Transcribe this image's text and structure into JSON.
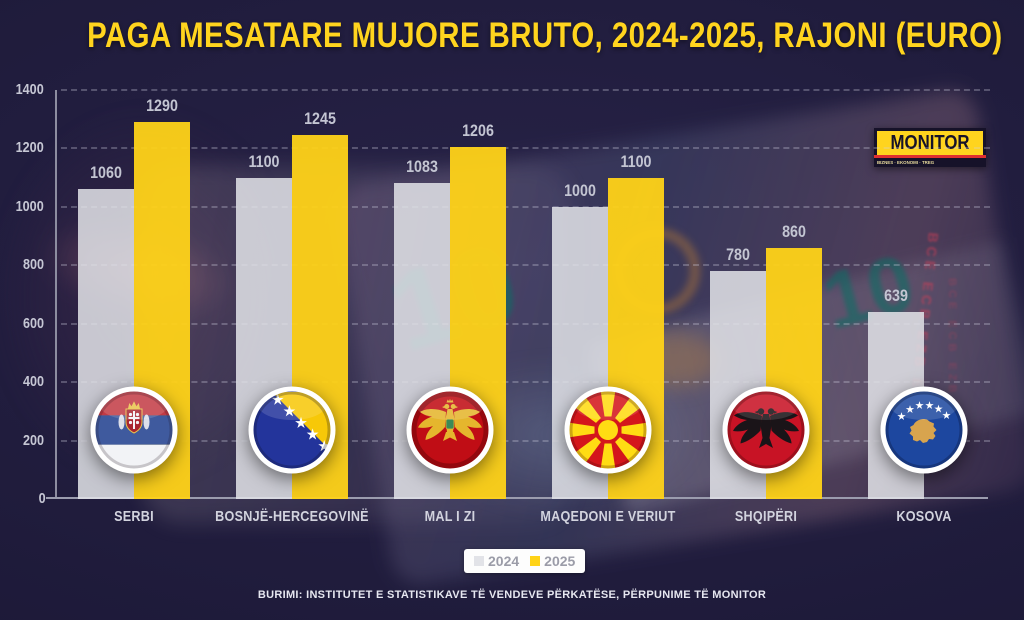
{
  "title": "PAGA MESATARE MUJORE BRUTO, 2024-2025, RAJONI (EURO)",
  "logo": {
    "name": "MONITOR",
    "tagline": "BIZNES · EKONOMI · TREG",
    "website": "www.monitor.al"
  },
  "source": "BURIMI: INSTITUTET E STATISTIKAVE TË VENDEVE PËRKATËSE, PËRPUNIME TË MONITOR",
  "colors": {
    "background": "#211d3e",
    "title_yellow": "#ffd41e",
    "bar_2024": "#e2e3e8",
    "bar_2025": "#ffd318",
    "logo_red": "#e03030"
  },
  "background_text": {
    "banknote_number": "10",
    "ecb_initials": "BCE ECB EZB EKP"
  },
  "chart_data": {
    "type": "bar",
    "title": "PAGA MESATARE MUJORE BRUTO, 2024-2025, RAJONI (EURO)",
    "categories": [
      "SERBI",
      "BOSNJË-HERCEGOVINË",
      "MAL I ZI",
      "MAQEDONI E VERIUT",
      "SHQIPËRI",
      "KOSOVA"
    ],
    "flags": [
      "serbia",
      "bosnia",
      "montenegro",
      "macedonia",
      "albania",
      "kosovo"
    ],
    "series": [
      {
        "name": "2024",
        "color": "#e2e3e8",
        "values": [
          1060,
          1100,
          1083,
          1000,
          780,
          639
        ]
      },
      {
        "name": "2025",
        "color": "#ffd318",
        "values": [
          1290,
          1245,
          1206,
          1100,
          860,
          null
        ]
      }
    ],
    "xlabel": "",
    "ylabel": "",
    "unit": "EUR",
    "ylim": [
      0,
      1400
    ],
    "yticks": [
      0,
      200,
      400,
      600,
      800,
      1000,
      1200,
      1400
    ],
    "grid": "horizontal-dashed",
    "legend_position": "bottom-center"
  }
}
